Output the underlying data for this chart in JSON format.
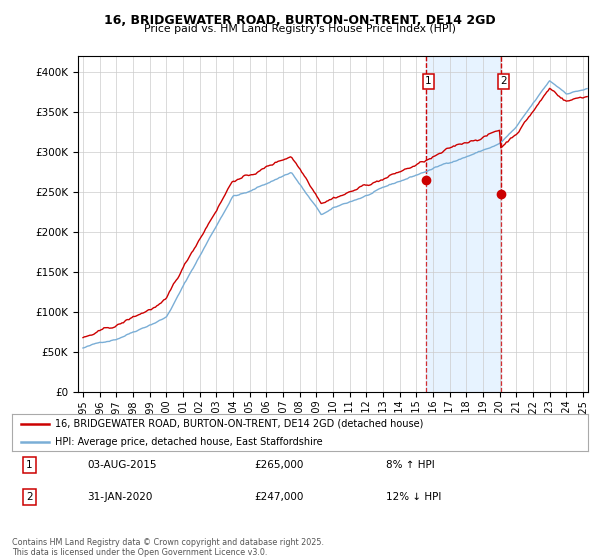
{
  "title1": "16, BRIDGEWATER ROAD, BURTON-ON-TRENT, DE14 2GD",
  "title2": "Price paid vs. HM Land Registry's House Price Index (HPI)",
  "legend_line1": "16, BRIDGEWATER ROAD, BURTON-ON-TRENT, DE14 2GD (detached house)",
  "legend_line2": "HPI: Average price, detached house, East Staffordshire",
  "marker1_date": "03-AUG-2015",
  "marker1_price": 265000,
  "marker1_label": "8% ↑ HPI",
  "marker2_date": "31-JAN-2020",
  "marker2_price": 247000,
  "marker2_label": "12% ↓ HPI",
  "marker1_x": 2015.58,
  "marker2_x": 2020.08,
  "footer": "Contains HM Land Registry data © Crown copyright and database right 2025.\nThis data is licensed under the Open Government Licence v3.0.",
  "red_color": "#cc0000",
  "blue_color": "#7aaed6",
  "shading_color": "#ddeeff",
  "ylim_min": 0,
  "ylim_max": 420000,
  "xlim_min": 1994.7,
  "xlim_max": 2025.3
}
